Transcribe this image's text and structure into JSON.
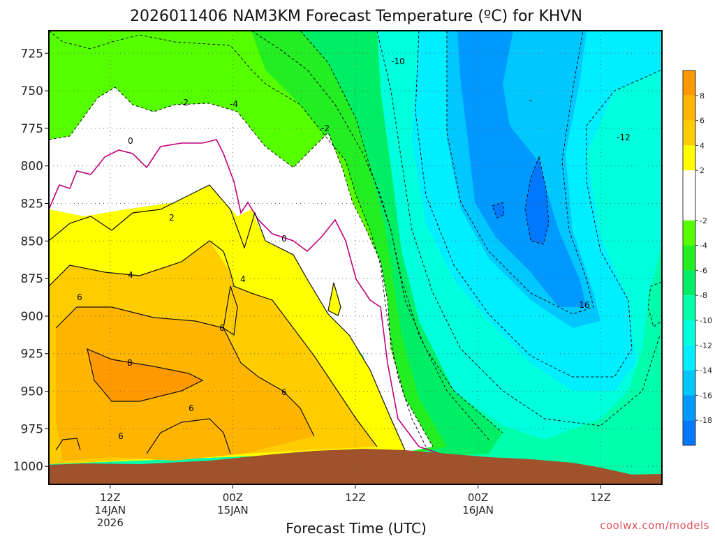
{
  "chart_data": {
    "type": "contour",
    "title": "2026011406 NAM3KM Forecast Temperature (ºC) for KHVN",
    "xlabel": "Forecast Time (UTC)",
    "credit": "coolwx.com/models",
    "y_axis": {
      "quantity": "pressure (hPa)",
      "ticks": [
        725,
        750,
        775,
        800,
        825,
        850,
        875,
        900,
        925,
        950,
        975,
        1000
      ],
      "range": [
        1012,
        710
      ],
      "inverted": true
    },
    "x_axis": {
      "range_utc": [
        "2026-01-14T06",
        "2026-01-16T18"
      ],
      "ticks": [
        {
          "lines": [
            "12Z",
            "14JAN",
            "2026"
          ],
          "time": "2026-01-14T12"
        },
        {
          "lines": [
            "00Z",
            "15JAN"
          ],
          "time": "2026-01-15T00"
        },
        {
          "lines": [
            "12Z"
          ],
          "time": "2026-01-15T12"
        },
        {
          "lines": [
            "00Z",
            "16JAN"
          ],
          "time": "2026-01-16T00"
        },
        {
          "lines": [
            "12Z"
          ],
          "time": "2026-01-16T12"
        }
      ],
      "grid": "dotted"
    },
    "colorbar": {
      "units": "ºC",
      "tick_labels": [
        "8",
        "6",
        "4",
        "2",
        "-2",
        "-4",
        "-6",
        "-8",
        "-10",
        "-12",
        "-14",
        "-16",
        "-18"
      ],
      "bands": [
        {
          "min": 8,
          "max": 10,
          "color": "#ff9900"
        },
        {
          "min": 6,
          "max": 8,
          "color": "#ffb400"
        },
        {
          "min": 4,
          "max": 6,
          "color": "#ffcc00"
        },
        {
          "min": 2,
          "max": 4,
          "color": "#ffff00"
        },
        {
          "min": -2,
          "max": 2,
          "color": "#ffffff"
        },
        {
          "min": -4,
          "max": -2,
          "color": "#55ff00"
        },
        {
          "min": -6,
          "max": -4,
          "color": "#22ee22"
        },
        {
          "min": -8,
          "max": -6,
          "color": "#00ee66"
        },
        {
          "min": -10,
          "max": -8,
          "color": "#00ffaa"
        },
        {
          "min": -12,
          "max": -10,
          "color": "#00ffdd"
        },
        {
          "min": -14,
          "max": -12,
          "color": "#00eeff"
        },
        {
          "min": -16,
          "max": -14,
          "color": "#00c8ff"
        },
        {
          "min": -18,
          "max": -16,
          "color": "#0099ff"
        },
        {
          "min": -20,
          "max": -18,
          "color": "#0077ff"
        }
      ]
    },
    "contour_labels": [
      "-10",
      "-2",
      "-4",
      "0",
      "-2",
      "2",
      "0",
      "4",
      "4",
      "6",
      "6",
      "6",
      "8",
      "6",
      "6",
      "-12",
      "16",
      "-"
    ],
    "ground_color": "#a0522d"
  }
}
